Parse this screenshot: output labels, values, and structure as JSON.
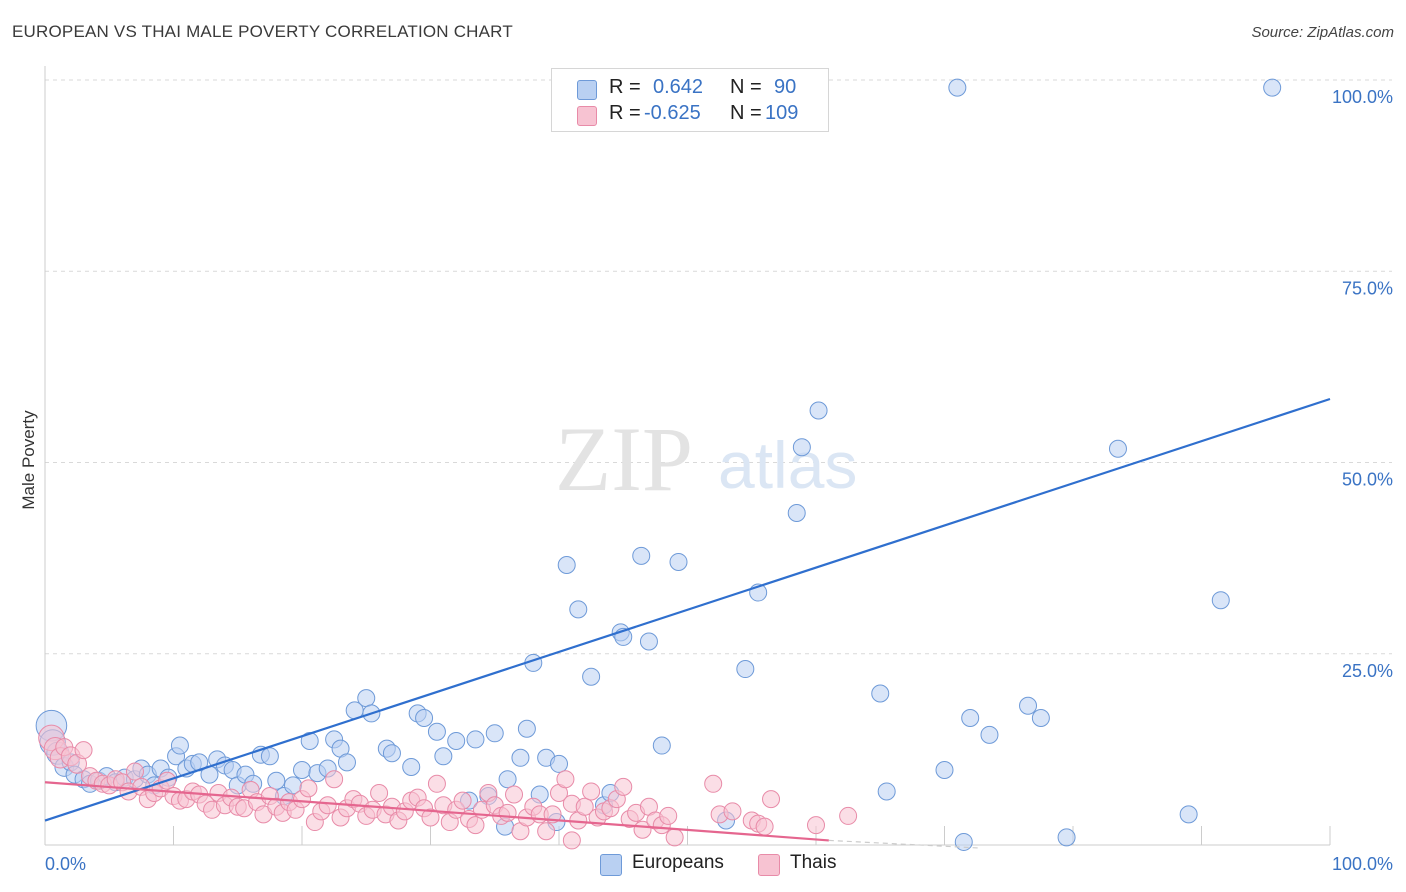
{
  "title": "EUROPEAN VS THAI MALE POVERTY CORRELATION CHART",
  "source": "Source: ZipAtlas.com",
  "watermark": {
    "zip": "ZIP",
    "atlas": "atlas"
  },
  "colors": {
    "europeans_fill": "#b9d0f2",
    "europeans_stroke": "#6e9ad8",
    "europeans_line": "#2f6fce",
    "thais_fill": "#f7c3d2",
    "thais_stroke": "#e88ba8",
    "thais_line": "#e5668f",
    "tick_label": "#3a73c4",
    "grid": "#d9d9d9"
  },
  "legend": {
    "europeans": {
      "r_label": "R =",
      "r_value": "0.642",
      "n_label": "N =",
      "n_value": "90"
    },
    "thais": {
      "r_label": "R =",
      "r_value": "-0.625",
      "n_label": "N =",
      "n_value": "109"
    }
  },
  "bottom_legend": {
    "europeans": "Europeans",
    "thais": "Thais"
  },
  "chart_data": {
    "type": "scatter",
    "title": "EUROPEAN VS THAI MALE POVERTY CORRELATION CHART",
    "xlabel": "",
    "ylabel": "Male Poverty",
    "xlim": [
      0,
      100
    ],
    "ylim": [
      0,
      100
    ],
    "x_tick_labels": {
      "left": "0.0%",
      "right": "100.0%"
    },
    "y_ticks": [
      25,
      50,
      75,
      100
    ],
    "y_tick_labels": [
      "25.0%",
      "50.0%",
      "75.0%",
      "100.0%"
    ],
    "grid": true,
    "series": [
      {
        "name": "Europeans",
        "r": 0.642,
        "n": 90,
        "trend": {
          "x": [
            0,
            100
          ],
          "y": [
            3.2,
            58.3
          ]
        },
        "points": [
          [
            0.5,
            15.6
          ],
          [
            0.6,
            13.4
          ],
          [
            1.0,
            12.0
          ],
          [
            1.5,
            10.2
          ],
          [
            2.0,
            10.8
          ],
          [
            2.3,
            9.2
          ],
          [
            3.0,
            8.6
          ],
          [
            3.5,
            8.0
          ],
          [
            4.2,
            8.4
          ],
          [
            4.8,
            9.0
          ],
          [
            5.5,
            8.2
          ],
          [
            6.2,
            8.8
          ],
          [
            7.0,
            8.6
          ],
          [
            7.5,
            10.0
          ],
          [
            8.0,
            9.2
          ],
          [
            8.5,
            7.8
          ],
          [
            9.0,
            10.0
          ],
          [
            9.6,
            8.8
          ],
          [
            10.2,
            11.6
          ],
          [
            10.5,
            13.0
          ],
          [
            11.0,
            10.0
          ],
          [
            11.5,
            10.6
          ],
          [
            12.0,
            10.8
          ],
          [
            12.8,
            9.2
          ],
          [
            13.4,
            11.2
          ],
          [
            14.0,
            10.4
          ],
          [
            14.6,
            9.8
          ],
          [
            15.0,
            7.8
          ],
          [
            15.6,
            9.2
          ],
          [
            16.2,
            8.0
          ],
          [
            16.8,
            11.8
          ],
          [
            17.5,
            11.6
          ],
          [
            18.0,
            8.4
          ],
          [
            18.6,
            6.4
          ],
          [
            19.3,
            7.8
          ],
          [
            20.0,
            9.8
          ],
          [
            20.6,
            13.6
          ],
          [
            21.2,
            9.4
          ],
          [
            22.0,
            10.0
          ],
          [
            22.5,
            13.8
          ],
          [
            23.0,
            12.6
          ],
          [
            23.5,
            10.8
          ],
          [
            24.1,
            17.6
          ],
          [
            25.0,
            19.2
          ],
          [
            25.4,
            17.2
          ],
          [
            26.6,
            12.6
          ],
          [
            27.0,
            12.0
          ],
          [
            28.5,
            10.2
          ],
          [
            29.0,
            17.2
          ],
          [
            29.5,
            16.6
          ],
          [
            30.5,
            14.8
          ],
          [
            31.0,
            11.6
          ],
          [
            32.0,
            13.6
          ],
          [
            33.0,
            5.8
          ],
          [
            33.5,
            13.8
          ],
          [
            34.5,
            6.4
          ],
          [
            35.0,
            14.6
          ],
          [
            35.8,
            2.4
          ],
          [
            36.0,
            8.6
          ],
          [
            37.0,
            11.4
          ],
          [
            37.5,
            15.2
          ],
          [
            38.0,
            23.8
          ],
          [
            38.5,
            6.6
          ],
          [
            39.0,
            11.4
          ],
          [
            39.8,
            3.0
          ],
          [
            40.0,
            10.6
          ],
          [
            40.6,
            36.6
          ],
          [
            41.5,
            30.8
          ],
          [
            42.5,
            22.0
          ],
          [
            43.5,
            5.2
          ],
          [
            44.0,
            6.8
          ],
          [
            44.8,
            27.8
          ],
          [
            45.0,
            27.2
          ],
          [
            46.4,
            37.8
          ],
          [
            47.0,
            26.6
          ],
          [
            48.0,
            13.0
          ],
          [
            49.3,
            37.0
          ],
          [
            53.0,
            3.2
          ],
          [
            54.5,
            23.0
          ],
          [
            55.5,
            33.0
          ],
          [
            58.5,
            43.4
          ],
          [
            58.9,
            52.0
          ],
          [
            60.2,
            56.8
          ],
          [
            65.0,
            19.8
          ],
          [
            65.5,
            7.0
          ],
          [
            70.0,
            9.8
          ],
          [
            71.5,
            0.4
          ],
          [
            71.0,
            99.0
          ],
          [
            72.0,
            16.6
          ],
          [
            73.5,
            14.4
          ],
          [
            76.5,
            18.2
          ],
          [
            77.5,
            16.6
          ],
          [
            79.5,
            1.0
          ],
          [
            83.5,
            51.8
          ],
          [
            89.0,
            4.0
          ],
          [
            91.5,
            32.0
          ],
          [
            95.5,
            99.0
          ]
        ],
        "sizes": {
          "0": 1.8,
          "1": 1.5,
          "2": 1.3,
          "3": 1.1
        }
      },
      {
        "name": "Thais",
        "r": -0.625,
        "n": 109,
        "trend": {
          "x": [
            0,
            61
          ],
          "y": [
            8.2,
            0.6
          ],
          "dashed_to": {
            "x": 100,
            "y": -4.2
          }
        },
        "points": [
          [
            0.5,
            14.0
          ],
          [
            0.8,
            12.6
          ],
          [
            1.2,
            11.4
          ],
          [
            1.5,
            12.8
          ],
          [
            2.0,
            11.6
          ],
          [
            2.5,
            10.6
          ],
          [
            3.0,
            12.4
          ],
          [
            3.5,
            9.0
          ],
          [
            4.0,
            8.4
          ],
          [
            4.5,
            8.0
          ],
          [
            5.0,
            7.8
          ],
          [
            5.5,
            8.6
          ],
          [
            6.0,
            8.2
          ],
          [
            6.5,
            7.0
          ],
          [
            7.0,
            9.6
          ],
          [
            7.5,
            7.6
          ],
          [
            8.0,
            6.0
          ],
          [
            8.5,
            6.8
          ],
          [
            9.0,
            7.4
          ],
          [
            9.5,
            8.4
          ],
          [
            10.0,
            6.4
          ],
          [
            10.5,
            5.8
          ],
          [
            11.0,
            6.0
          ],
          [
            11.5,
            7.0
          ],
          [
            12.0,
            6.6
          ],
          [
            12.5,
            5.4
          ],
          [
            13.0,
            4.6
          ],
          [
            13.5,
            6.8
          ],
          [
            14.0,
            5.2
          ],
          [
            14.5,
            6.2
          ],
          [
            15.0,
            5.0
          ],
          [
            15.5,
            4.8
          ],
          [
            16.0,
            7.2
          ],
          [
            16.5,
            5.6
          ],
          [
            17.0,
            4.0
          ],
          [
            17.5,
            6.4
          ],
          [
            18.0,
            5.0
          ],
          [
            18.5,
            4.2
          ],
          [
            19.0,
            5.6
          ],
          [
            19.5,
            4.6
          ],
          [
            20.0,
            6.0
          ],
          [
            20.5,
            7.4
          ],
          [
            21.0,
            3.0
          ],
          [
            21.5,
            4.4
          ],
          [
            22.0,
            5.2
          ],
          [
            22.5,
            8.6
          ],
          [
            23.0,
            3.6
          ],
          [
            23.5,
            4.8
          ],
          [
            24.0,
            6.0
          ],
          [
            24.5,
            5.4
          ],
          [
            25.0,
            3.8
          ],
          [
            25.5,
            4.6
          ],
          [
            26.0,
            6.8
          ],
          [
            26.5,
            4.0
          ],
          [
            27.0,
            5.0
          ],
          [
            27.5,
            3.2
          ],
          [
            28.0,
            4.4
          ],
          [
            28.5,
            5.8
          ],
          [
            29.0,
            6.2
          ],
          [
            29.5,
            4.8
          ],
          [
            30.0,
            3.6
          ],
          [
            30.5,
            8.0
          ],
          [
            31.0,
            5.2
          ],
          [
            31.5,
            3.0
          ],
          [
            32.0,
            4.6
          ],
          [
            32.5,
            5.8
          ],
          [
            33.0,
            3.4
          ],
          [
            33.5,
            2.6
          ],
          [
            34.0,
            4.6
          ],
          [
            34.5,
            6.8
          ],
          [
            35.0,
            5.2
          ],
          [
            35.5,
            3.8
          ],
          [
            36.0,
            4.2
          ],
          [
            36.5,
            6.6
          ],
          [
            37.0,
            1.8
          ],
          [
            37.5,
            3.6
          ],
          [
            38.0,
            5.0
          ],
          [
            38.5,
            4.0
          ],
          [
            39.0,
            1.8
          ],
          [
            39.5,
            4.0
          ],
          [
            40.0,
            6.8
          ],
          [
            40.5,
            8.6
          ],
          [
            41.0,
            5.4
          ],
          [
            41.5,
            3.2
          ],
          [
            42.0,
            5.0
          ],
          [
            42.5,
            7.0
          ],
          [
            43.0,
            3.6
          ],
          [
            43.5,
            4.4
          ],
          [
            44.0,
            4.8
          ],
          [
            44.5,
            6.0
          ],
          [
            45.0,
            7.6
          ],
          [
            45.5,
            3.4
          ],
          [
            46.0,
            4.2
          ],
          [
            46.5,
            2.0
          ],
          [
            47.0,
            5.0
          ],
          [
            47.5,
            3.2
          ],
          [
            48.0,
            2.6
          ],
          [
            48.5,
            3.8
          ],
          [
            49.0,
            1.0
          ],
          [
            52.5,
            4.0
          ],
          [
            53.5,
            4.4
          ],
          [
            55.0,
            3.2
          ],
          [
            55.5,
            2.8
          ],
          [
            56.0,
            2.4
          ],
          [
            56.5,
            6.0
          ],
          [
            60.0,
            2.6
          ],
          [
            62.5,
            3.8
          ],
          [
            41.0,
            0.6
          ],
          [
            52.0,
            8.0
          ]
        ],
        "sizes": {
          "0": 1.5,
          "1": 1.3,
          "2": 1.2,
          "4": 1.1,
          "5": 1.1
        }
      }
    ]
  }
}
